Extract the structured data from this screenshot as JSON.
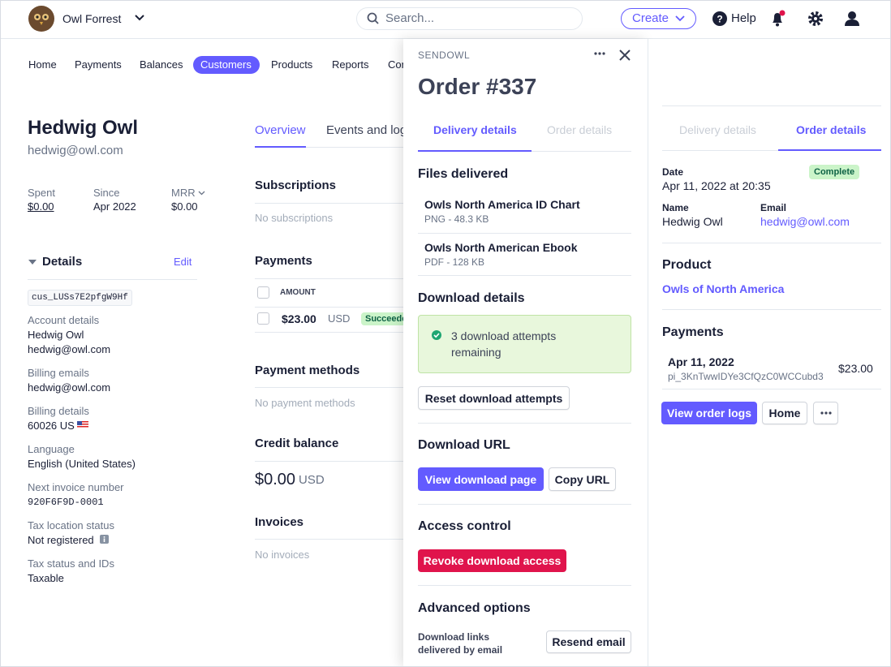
{
  "top_bar": {
    "account": "Owl Forrest",
    "search": "Search...",
    "create": "Create",
    "help": "Help"
  },
  "nav": [
    "Home",
    "Payments",
    "Balances",
    "Customers",
    "Products",
    "Reports",
    "Connect"
  ],
  "customer": {
    "name": "Hedwig Owl",
    "email": "hedwig@owl.com",
    "stats": [
      {
        "label": "Spent",
        "value": "$0.00"
      },
      {
        "label": "Since",
        "value": "Apr 2022"
      },
      {
        "label": "MRR",
        "value": "$0.00"
      }
    ],
    "details": {
      "title": "Details",
      "edit": "Edit",
      "id": "cus_LUSs7E2pfgW9Hf",
      "fields": [
        {
          "label": "Account details",
          "lines": [
            "Hedwig Owl",
            "hedwig@owl.com"
          ]
        },
        {
          "label": "Billing emails",
          "lines": [
            "hedwig@owl.com"
          ]
        },
        {
          "label": "Billing details",
          "lines": [
            "60026 US"
          ]
        },
        {
          "label": "Language",
          "lines": [
            "English (United States)"
          ]
        },
        {
          "label": "Next invoice number",
          "lines": [
            "920F6F9D-0001"
          ]
        },
        {
          "label": "Tax location status",
          "lines": [
            "Not registered"
          ]
        },
        {
          "label": "Tax status and IDs",
          "lines": [
            "Taxable"
          ]
        }
      ]
    }
  },
  "overview": {
    "tabs": [
      "Overview",
      "Events and logs"
    ],
    "subscriptions": {
      "title": "Subscriptions",
      "empty": "No subscriptions"
    },
    "payments": {
      "title": "Payments",
      "column": "AMOUNT",
      "rows": [
        {
          "amount": "$23.00",
          "currency": "USD",
          "status": "Succeeded"
        }
      ]
    },
    "payment_methods": {
      "title": "Payment methods",
      "empty": "No payment methods"
    },
    "credit_balance": {
      "title": "Credit balance",
      "amount": "$0.00",
      "currency": "USD"
    },
    "invoices": {
      "title": "Invoices",
      "empty": "No invoices"
    }
  },
  "order_panel": {
    "app": "SENDOWL",
    "title": "Order #337",
    "tabs": [
      "Delivery details",
      "Order details"
    ],
    "files_title": "Files delivered",
    "files": [
      {
        "name": "Owls North America ID Chart",
        "meta": "PNG - 48.3 KB"
      },
      {
        "name": "Owls North American Ebook",
        "meta": "PDF - 128 KB"
      }
    ],
    "download_details": {
      "title": "Download details",
      "notice": "3 download attempts remaining",
      "reset": "Reset download attempts"
    },
    "download_url": {
      "title": "Download URL",
      "view": "View download page",
      "copy": "Copy URL"
    },
    "access_control": {
      "title": "Access control",
      "revoke": "Revoke download access"
    },
    "advanced": {
      "title": "Advanced options",
      "label": "Download links delivered by email",
      "resend": "Resend email"
    }
  },
  "details_panel": {
    "tabs": [
      "Delivery details",
      "Order details"
    ],
    "date_label": "Date",
    "date": "Apr 11, 2022 at 20:35",
    "status": "Complete",
    "name_label": "Name",
    "name": "Hedwig Owl",
    "email_label": "Email",
    "email": "hedwig@owl.com",
    "product_title": "Product",
    "product": "Owls of North America",
    "payments_title": "Payments",
    "payment": {
      "date": "Apr 11, 2022",
      "id": "pi_3KnTwwIDYe3CfQzC0WCCubd3",
      "amount": "$23.00"
    },
    "buttons": [
      "View order logs",
      "Home"
    ]
  }
}
